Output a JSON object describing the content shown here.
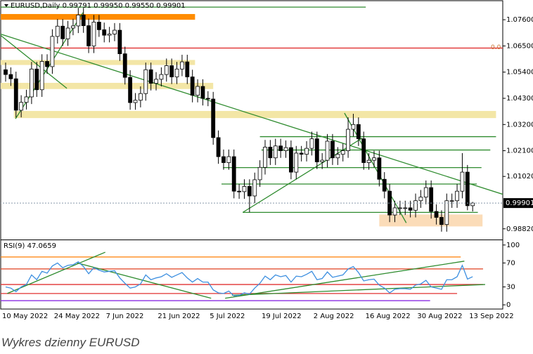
{
  "chart_data": [
    {
      "type": "candlestick",
      "title": "EURUSD,Daily  0.99791 0.99950 0.99550 0.99901",
      "categories": [
        "10 May 2022",
        null,
        null,
        null,
        null,
        null,
        null,
        null,
        null,
        null,
        "24 May 2022",
        null,
        null,
        null,
        null,
        null,
        null,
        null,
        null,
        null,
        "7 Jun 2022",
        null,
        null,
        null,
        null,
        null,
        null,
        null,
        null,
        null,
        "21 Jun 2022",
        null,
        null,
        null,
        null,
        null,
        null,
        null,
        null,
        null,
        "5 Jul 2022",
        null,
        null,
        null,
        null,
        null,
        null,
        null,
        null,
        null,
        "19 Jul 2022",
        null,
        null,
        null,
        null,
        null,
        null,
        null,
        null,
        null,
        "2 Aug 2022",
        null,
        null,
        null,
        null,
        null,
        null,
        null,
        null,
        null,
        "16 Aug 2022",
        null,
        null,
        null,
        null,
        null,
        null,
        null,
        null,
        null,
        "30 Aug 2022",
        null,
        null,
        null,
        null,
        null,
        null,
        null,
        null,
        null,
        "13 Sep 2022"
      ],
      "open": [
        1.055,
        1.053,
        1.0512,
        1.038,
        1.0413,
        1.0436,
        1.0553,
        1.0466,
        1.0585,
        1.0563,
        1.069,
        1.0733,
        1.068,
        1.0725,
        1.0734,
        1.078,
        1.0735,
        1.065,
        1.075,
        1.0718,
        1.0695,
        1.07,
        1.0716,
        1.0617,
        1.0518,
        1.0412,
        1.0422,
        1.045,
        1.055,
        1.0493,
        1.051,
        1.053,
        1.0567,
        1.052,
        1.0553,
        1.0583,
        1.052,
        1.0443,
        1.048,
        1.043,
        1.0427,
        1.0265,
        1.0185,
        1.016,
        1.0185,
        1.004,
        1.0038,
        1.006,
        1.002,
        1.0088,
        1.014,
        1.0225,
        1.018,
        1.023,
        1.021,
        1.0223,
        1.012,
        1.02,
        1.0195,
        1.022,
        1.026,
        1.0163,
        1.017,
        1.025,
        1.018,
        1.0195,
        1.021,
        1.03,
        1.032,
        1.026,
        1.016,
        1.017,
        1.018,
        1.009,
        1.004,
        0.994,
        0.997,
        0.997,
        0.997,
        0.996,
        1.0,
        1.0015,
        1.0055,
        0.9955,
        0.993,
        0.99,
        1.0,
        1.0,
        1.004,
        1.012,
        0.99791
      ],
      "high": [
        1.058,
        1.056,
        1.0542,
        1.0443,
        1.0466,
        1.0583,
        1.0583,
        1.0615,
        1.0615,
        1.072,
        1.0763,
        1.0763,
        1.0755,
        1.0764,
        1.081,
        1.081,
        1.0765,
        1.078,
        1.078,
        1.0748,
        1.073,
        1.0746,
        1.0746,
        1.0647,
        1.0548,
        1.0452,
        1.048,
        1.058,
        1.058,
        1.054,
        1.056,
        1.0597,
        1.0597,
        1.0583,
        1.0613,
        1.0613,
        1.055,
        1.051,
        1.051,
        1.046,
        1.0457,
        1.0295,
        1.0215,
        1.0215,
        1.0215,
        1.007,
        1.009,
        1.009,
        1.0118,
        1.017,
        1.0255,
        1.0255,
        1.026,
        1.026,
        1.0253,
        1.0253,
        1.023,
        1.023,
        1.025,
        1.029,
        1.029,
        1.02,
        1.028,
        1.028,
        1.0225,
        1.024,
        1.035,
        1.0365,
        1.035,
        1.029,
        1.02,
        1.021,
        1.021,
        1.012,
        1.007,
        1.0,
        1.0,
        1.0,
        1.0,
        1.003,
        1.0045,
        1.0085,
        1.0085,
        0.9985,
        0.996,
        1.003,
        1.003,
        1.007,
        1.02,
        1.015,
        0.9995
      ],
      "low": [
        1.05,
        1.0482,
        1.035,
        1.035,
        1.0383,
        1.0406,
        1.0436,
        1.0436,
        1.0533,
        1.0533,
        1.066,
        1.065,
        1.065,
        1.0695,
        1.0704,
        1.0705,
        1.062,
        1.062,
        1.0688,
        1.0665,
        1.0665,
        1.067,
        1.0587,
        1.0488,
        1.0382,
        1.0382,
        1.0392,
        1.042,
        1.0463,
        1.0463,
        1.048,
        1.05,
        1.049,
        1.049,
        1.0523,
        1.049,
        1.0413,
        1.0413,
        1.04,
        1.0397,
        1.0235,
        1.0155,
        1.013,
        1.013,
        1.001,
        1.0008,
        1.0008,
        0.9952,
        0.999,
        1.0058,
        1.011,
        1.015,
        1.015,
        1.018,
        1.018,
        1.009,
        1.009,
        1.0165,
        1.0165,
        1.019,
        1.0133,
        1.0133,
        1.014,
        1.015,
        1.015,
        1.0165,
        1.018,
        1.027,
        1.023,
        1.013,
        1.013,
        1.014,
        1.006,
        1.001,
        0.991,
        0.991,
        0.994,
        0.994,
        0.993,
        0.993,
        0.997,
        0.9985,
        0.9925,
        0.99,
        0.987,
        0.987,
        0.997,
        0.997,
        1.001,
        0.996,
        0.9955
      ],
      "close": [
        1.053,
        1.0512,
        1.038,
        1.0413,
        1.0436,
        1.0553,
        1.0466,
        1.0585,
        1.0563,
        1.069,
        1.0733,
        1.068,
        1.0725,
        1.0734,
        1.078,
        1.0735,
        1.065,
        1.075,
        1.0718,
        1.0695,
        1.07,
        1.0716,
        1.0617,
        1.0518,
        1.0412,
        1.0422,
        1.045,
        1.055,
        1.0493,
        1.051,
        1.053,
        1.0567,
        1.052,
        1.0553,
        1.0583,
        1.052,
        1.0443,
        1.048,
        1.043,
        1.0427,
        1.0265,
        1.0185,
        1.016,
        1.0185,
        1.004,
        1.0038,
        1.006,
        1.002,
        1.0088,
        1.014,
        1.0225,
        1.018,
        1.023,
        1.021,
        1.0223,
        1.012,
        1.02,
        1.0195,
        1.022,
        1.026,
        1.0163,
        1.017,
        1.025,
        1.018,
        1.0195,
        1.021,
        1.03,
        1.032,
        1.026,
        1.016,
        1.017,
        1.018,
        1.009,
        1.004,
        0.994,
        0.997,
        0.997,
        0.997,
        0.996,
        1.0,
        1.0015,
        1.0055,
        0.9955,
        0.993,
        0.99,
        1.0,
        1.0,
        1.004,
        1.012,
        0.9979,
        0.99901
      ],
      "ylim": [
        0.984,
        1.0837
      ],
      "yticks": [
        {
          "value": 1.076,
          "label": "1.07600"
        },
        {
          "value": 1.065,
          "label": "1.06500"
        },
        {
          "value": 1.054,
          "label": "1.05400"
        },
        {
          "value": 1.043,
          "label": "1.04300"
        },
        {
          "value": 1.032,
          "label": "1.03200"
        },
        {
          "value": 1.021,
          "label": "1.02100"
        },
        {
          "value": 1.0102,
          "label": "1.01020"
        },
        {
          "value": 0.9882,
          "label": "0.98820"
        }
      ],
      "last_price": 0.99901,
      "level_label": "0.0",
      "zones": [
        {
          "x": [
            -1,
            36.5
          ],
          "y": [
            1.0784,
            1.076
          ],
          "color": "#ff8c00"
        },
        {
          "x": [
            -1,
            36.5
          ],
          "y": [
            1.0591,
            1.057
          ],
          "color": "#f3e6a6"
        },
        {
          "x": [
            -1,
            40
          ],
          "y": [
            1.0495,
            1.0469
          ],
          "color": "#f3e6a6"
        },
        {
          "x": [
            1.6,
            94.5
          ],
          "y": [
            1.0377,
            1.0347
          ],
          "color": "#f3e6a6"
        },
        {
          "x": [
            72,
            91.9
          ],
          "y": [
            0.9942,
            0.9892
          ],
          "color": "#fbdcb8"
        }
      ],
      "lines": [
        {
          "x": [
            -1,
            69.4
          ],
          "y": [
            1.0813,
            1.0813
          ],
          "color": "#2e8b2e"
        },
        {
          "x": [
            -1,
            97
          ],
          "y": [
            1.0641,
            1.0641
          ],
          "color": "#e03030"
        },
        {
          "x": [
            -1,
            95.8
          ],
          "y": [
            1.07,
            1.0027
          ],
          "color": "#2e8b2e"
        },
        {
          "x": [
            1.9,
            14.9
          ],
          "y": [
            1.0344,
            1.079
          ],
          "color": "#2e8b2e"
        },
        {
          "x": [
            -1,
            11.8
          ],
          "y": [
            1.0695,
            1.0472
          ],
          "color": "#2e8b2e"
        },
        {
          "x": [
            49,
            94.5
          ],
          "y": [
            1.0269,
            1.0269
          ],
          "color": "#2e8b2e"
        },
        {
          "x": [
            49.3,
            93.4
          ],
          "y": [
            1.0213,
            1.0213
          ],
          "color": "#2e8b2e"
        },
        {
          "x": [
            41.9,
            91.7
          ],
          "y": [
            1.0139,
            1.0139
          ],
          "color": "#2e8b2e"
        },
        {
          "x": [
            41.6,
            90.8
          ],
          "y": [
            1.007,
            1.007
          ],
          "color": "#2e8b2e"
        },
        {
          "x": [
            45.7,
            91
          ],
          "y": [
            0.9951,
            0.9951
          ],
          "color": "#2e8b2e"
        },
        {
          "x": [
            45.7,
            68.7
          ],
          "y": [
            0.9951,
            1.0263
          ],
          "color": "#2e8b2e"
        },
        {
          "x": [
            65.3,
            77.2
          ],
          "y": [
            1.0368,
            0.9907
          ],
          "color": "#2e8b2e"
        }
      ]
    },
    {
      "type": "line",
      "title": "RSI(9) 47.0659",
      "values": [
        30,
        28,
        22,
        30,
        34,
        50,
        42,
        56,
        53,
        65,
        70,
        62,
        66,
        67,
        72,
        64,
        52,
        62,
        58,
        55,
        56,
        57,
        45,
        36,
        28,
        30,
        35,
        50,
        42,
        45,
        47,
        52,
        46,
        50,
        54,
        45,
        38,
        44,
        38,
        38,
        25,
        20,
        19,
        23,
        15,
        16,
        20,
        18,
        28,
        36,
        48,
        42,
        50,
        47,
        49,
        38,
        48,
        47,
        51,
        56,
        42,
        44,
        55,
        46,
        48,
        50,
        60,
        64,
        54,
        40,
        42,
        43,
        33,
        28,
        20,
        26,
        27,
        27,
        26,
        33,
        35,
        41,
        30,
        28,
        26,
        42,
        42,
        47,
        66,
        43,
        47.0659
      ],
      "color": "#3d8fe0",
      "ylim": [
        -7,
        108
      ],
      "yticks": [
        100,
        70,
        30,
        0
      ],
      "lines": [
        {
          "x": [
            -1,
            87.7
          ],
          "y": [
            80,
            80
          ],
          "color": "#ff7f00"
        },
        {
          "x": [
            -1,
            92
          ],
          "y": [
            60,
            60
          ],
          "color": "#e04020"
        },
        {
          "x": [
            -1,
            92
          ],
          "y": [
            34,
            34
          ],
          "color": "#e03030"
        },
        {
          "x": [
            -1,
            87
          ],
          "y": [
            19,
            19
          ],
          "color": "#e03030"
        },
        {
          "x": [
            -1,
            81.8
          ],
          "y": [
            7,
            7
          ],
          "color": "#8a2be2"
        },
        {
          "x": [
            0.3,
            19.2
          ],
          "y": [
            19,
            88
          ],
          "color": "#2e8b2e"
        },
        {
          "x": [
            13.8,
            39.6
          ],
          "y": [
            70,
            11
          ],
          "color": "#2e8b2e"
        },
        {
          "x": [
            42.3,
            88.4
          ],
          "y": [
            11,
            73
          ],
          "color": "#2e8b2e"
        },
        {
          "x": [
            43.6,
            92.4
          ],
          "y": [
            16,
            34
          ],
          "color": "#2e8b2e"
        }
      ]
    }
  ],
  "caption": "Wykres dzienny EURUSD"
}
